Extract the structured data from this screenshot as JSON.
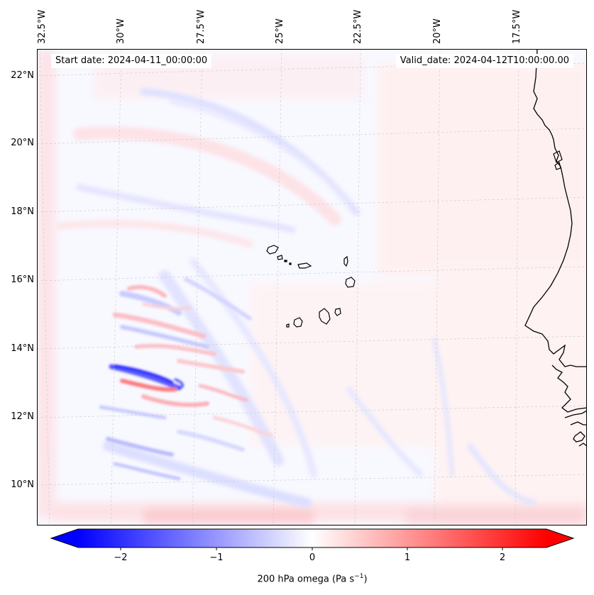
{
  "map": {
    "start_date": "Start date: 2024-04-11_00:00:00",
    "valid_date": "Valid_date: 2024-04-12T10:00:00.00",
    "longitude_labels": [
      "32.5°W",
      "30°W",
      "27.5°W",
      "25°W",
      "22.5°W",
      "20°W",
      "17.5°W"
    ],
    "latitude_labels": [
      "22°N",
      "20°N",
      "18°N",
      "16°N",
      "14°N",
      "12°N",
      "10°N"
    ],
    "variable": "200 hPa omega"
  },
  "colorbar": {
    "label_prefix": "200 hPa omega (Pa s",
    "label_exponent": "−1",
    "label_suffix": ")",
    "ticks": [
      "−2",
      "−1",
      "0",
      "1",
      "2"
    ],
    "min": -2.6,
    "max": 2.6,
    "negative_color": "#0000ff",
    "positive_color": "#ff0000"
  }
}
